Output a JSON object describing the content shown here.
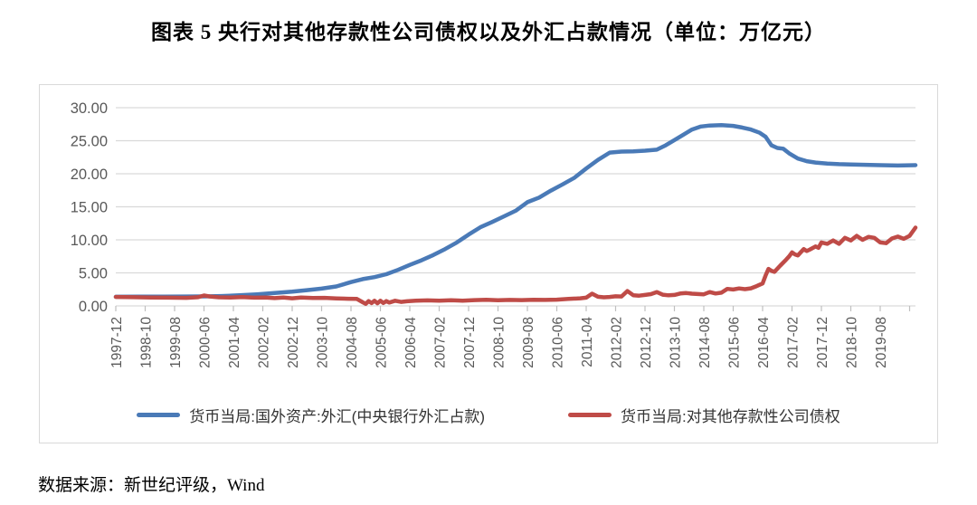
{
  "title": "图表 5  央行对其他存款性公司债权以及外汇占款情况（单位：万亿元）",
  "source": "数据来源：新世纪评级，Wind",
  "colors": {
    "series_blue": "#4a7ab7",
    "series_red": "#bf4b47",
    "grid": "#d9d9d9",
    "tick": "#bfbfbf",
    "axis_text": "#595959",
    "legend_text": "#333333",
    "box_border": "#d9d9d9"
  },
  "chart_data": {
    "type": "line",
    "title": "央行对其他存款性公司债权以及外汇占款情况",
    "unit": "万亿元",
    "grid": "horizontal-on",
    "legend_position": "bottom",
    "ylim": [
      0,
      30
    ],
    "y_tick_values": [
      0,
      5,
      10,
      15,
      20,
      25,
      30
    ],
    "y_tick_labels": [
      "0.00",
      "5.00",
      "10.00",
      "15.00",
      "20.00",
      "25.00",
      "30.00"
    ],
    "x_unit": "months since 1997-12",
    "x_tick_interval_months": 10,
    "x_total_months": 272,
    "x_labels": [
      "1997-12",
      "1998-10",
      "1999-08",
      "2000-06",
      "2001-04",
      "2002-02",
      "2002-12",
      "2003-10",
      "2004-08",
      "2005-06",
      "2006-04",
      "2007-02",
      "2007-12",
      "2008-10",
      "2009-08",
      "2010-06",
      "2011-04",
      "2012-02",
      "2012-12",
      "2013-10",
      "2014-08",
      "2015-06",
      "2016-04",
      "2017-02",
      "2017-12",
      "2018-10",
      "2019-08"
    ],
    "series": [
      {
        "name": "货币当局:国外资产:外汇(中央银行外汇占款)",
        "color": "#4a7ab7",
        "points": [
          [
            0,
            1.39
          ],
          [
            8,
            1.4
          ],
          [
            16,
            1.41
          ],
          [
            24,
            1.42
          ],
          [
            30,
            1.44
          ],
          [
            36,
            1.5
          ],
          [
            42,
            1.6
          ],
          [
            48,
            1.75
          ],
          [
            54,
            1.95
          ],
          [
            60,
            2.15
          ],
          [
            65,
            2.38
          ],
          [
            70,
            2.62
          ],
          [
            75,
            2.95
          ],
          [
            80,
            3.6
          ],
          [
            84,
            4.05
          ],
          [
            88,
            4.35
          ],
          [
            92,
            4.8
          ],
          [
            96,
            5.45
          ],
          [
            100,
            6.2
          ],
          [
            104,
            6.9
          ],
          [
            108,
            7.7
          ],
          [
            112,
            8.6
          ],
          [
            116,
            9.6
          ],
          [
            120,
            10.8
          ],
          [
            124,
            11.9
          ],
          [
            128,
            12.7
          ],
          [
            132,
            13.55
          ],
          [
            136,
            14.4
          ],
          [
            140,
            15.7
          ],
          [
            144,
            16.4
          ],
          [
            148,
            17.45
          ],
          [
            152,
            18.4
          ],
          [
            156,
            19.4
          ],
          [
            160,
            20.8
          ],
          [
            164,
            22.1
          ],
          [
            168,
            23.2
          ],
          [
            172,
            23.35
          ],
          [
            176,
            23.4
          ],
          [
            180,
            23.5
          ],
          [
            184,
            23.65
          ],
          [
            187,
            24.3
          ],
          [
            190,
            25.1
          ],
          [
            193,
            25.9
          ],
          [
            196,
            26.7
          ],
          [
            199,
            27.15
          ],
          [
            202,
            27.3
          ],
          [
            206,
            27.35
          ],
          [
            210,
            27.25
          ],
          [
            213,
            27.0
          ],
          [
            216,
            26.7
          ],
          [
            219,
            26.2
          ],
          [
            221,
            25.6
          ],
          [
            223,
            24.3
          ],
          [
            225,
            23.9
          ],
          [
            227,
            23.8
          ],
          [
            229,
            23.1
          ],
          [
            232,
            22.3
          ],
          [
            235,
            21.9
          ],
          [
            238,
            21.7
          ],
          [
            242,
            21.55
          ],
          [
            246,
            21.45
          ],
          [
            250,
            21.4
          ],
          [
            255,
            21.35
          ],
          [
            260,
            21.3
          ],
          [
            266,
            21.25
          ],
          [
            272,
            21.3
          ]
        ]
      },
      {
        "name": "货币当局:对其他存款性公司债权",
        "color": "#bf4b47",
        "points": [
          [
            0,
            1.35
          ],
          [
            6,
            1.32
          ],
          [
            12,
            1.28
          ],
          [
            18,
            1.24
          ],
          [
            24,
            1.22
          ],
          [
            28,
            1.32
          ],
          [
            30,
            1.58
          ],
          [
            32,
            1.42
          ],
          [
            35,
            1.3
          ],
          [
            39,
            1.28
          ],
          [
            43,
            1.33
          ],
          [
            47,
            1.24
          ],
          [
            51,
            1.28
          ],
          [
            54,
            1.18
          ],
          [
            57,
            1.26
          ],
          [
            60,
            1.15
          ],
          [
            63,
            1.28
          ],
          [
            67,
            1.2
          ],
          [
            71,
            1.22
          ],
          [
            75,
            1.14
          ],
          [
            79,
            1.08
          ],
          [
            82,
            1.05
          ],
          [
            84,
            0.55
          ],
          [
            85,
            0.32
          ],
          [
            86,
            0.72
          ],
          [
            87,
            0.42
          ],
          [
            88,
            0.78
          ],
          [
            89,
            0.4
          ],
          [
            90,
            0.78
          ],
          [
            91,
            0.44
          ],
          [
            92,
            0.72
          ],
          [
            93,
            0.5
          ],
          [
            95,
            0.78
          ],
          [
            97,
            0.6
          ],
          [
            99,
            0.7
          ],
          [
            102,
            0.78
          ],
          [
            106,
            0.84
          ],
          [
            110,
            0.8
          ],
          [
            114,
            0.85
          ],
          [
            118,
            0.8
          ],
          [
            122,
            0.87
          ],
          [
            126,
            0.92
          ],
          [
            130,
            0.86
          ],
          [
            134,
            0.9
          ],
          [
            138,
            0.88
          ],
          [
            142,
            0.92
          ],
          [
            146,
            0.9
          ],
          [
            150,
            0.95
          ],
          [
            154,
            1.05
          ],
          [
            158,
            1.15
          ],
          [
            160,
            1.25
          ],
          [
            162,
            1.85
          ],
          [
            164,
            1.38
          ],
          [
            166,
            1.3
          ],
          [
            168,
            1.36
          ],
          [
            170,
            1.45
          ],
          [
            172,
            1.42
          ],
          [
            174,
            2.25
          ],
          [
            176,
            1.62
          ],
          [
            178,
            1.55
          ],
          [
            180,
            1.66
          ],
          [
            182,
            1.78
          ],
          [
            184,
            2.1
          ],
          [
            186,
            1.7
          ],
          [
            188,
            1.6
          ],
          [
            190,
            1.66
          ],
          [
            192,
            1.88
          ],
          [
            194,
            1.95
          ],
          [
            196,
            1.85
          ],
          [
            198,
            1.8
          ],
          [
            200,
            1.76
          ],
          [
            202,
            2.1
          ],
          [
            204,
            1.88
          ],
          [
            206,
            2.0
          ],
          [
            208,
            2.58
          ],
          [
            210,
            2.48
          ],
          [
            212,
            2.64
          ],
          [
            214,
            2.54
          ],
          [
            216,
            2.66
          ],
          [
            218,
            3.0
          ],
          [
            220,
            3.4
          ],
          [
            221,
            4.6
          ],
          [
            222,
            5.6
          ],
          [
            223,
            5.3
          ],
          [
            224,
            5.15
          ],
          [
            226,
            6.1
          ],
          [
            228,
            7.0
          ],
          [
            229,
            7.5
          ],
          [
            230,
            8.1
          ],
          [
            231,
            7.8
          ],
          [
            232,
            7.65
          ],
          [
            234,
            8.6
          ],
          [
            235,
            8.3
          ],
          [
            236,
            8.5
          ],
          [
            238,
            9.0
          ],
          [
            239,
            8.8
          ],
          [
            240,
            9.6
          ],
          [
            242,
            9.4
          ],
          [
            244,
            9.9
          ],
          [
            246,
            9.4
          ],
          [
            248,
            10.3
          ],
          [
            250,
            9.9
          ],
          [
            252,
            10.6
          ],
          [
            254,
            10.0
          ],
          [
            256,
            10.45
          ],
          [
            258,
            10.3
          ],
          [
            260,
            9.6
          ],
          [
            262,
            9.5
          ],
          [
            264,
            10.2
          ],
          [
            266,
            10.5
          ],
          [
            268,
            10.15
          ],
          [
            270,
            10.6
          ],
          [
            272,
            11.85
          ]
        ]
      }
    ]
  }
}
